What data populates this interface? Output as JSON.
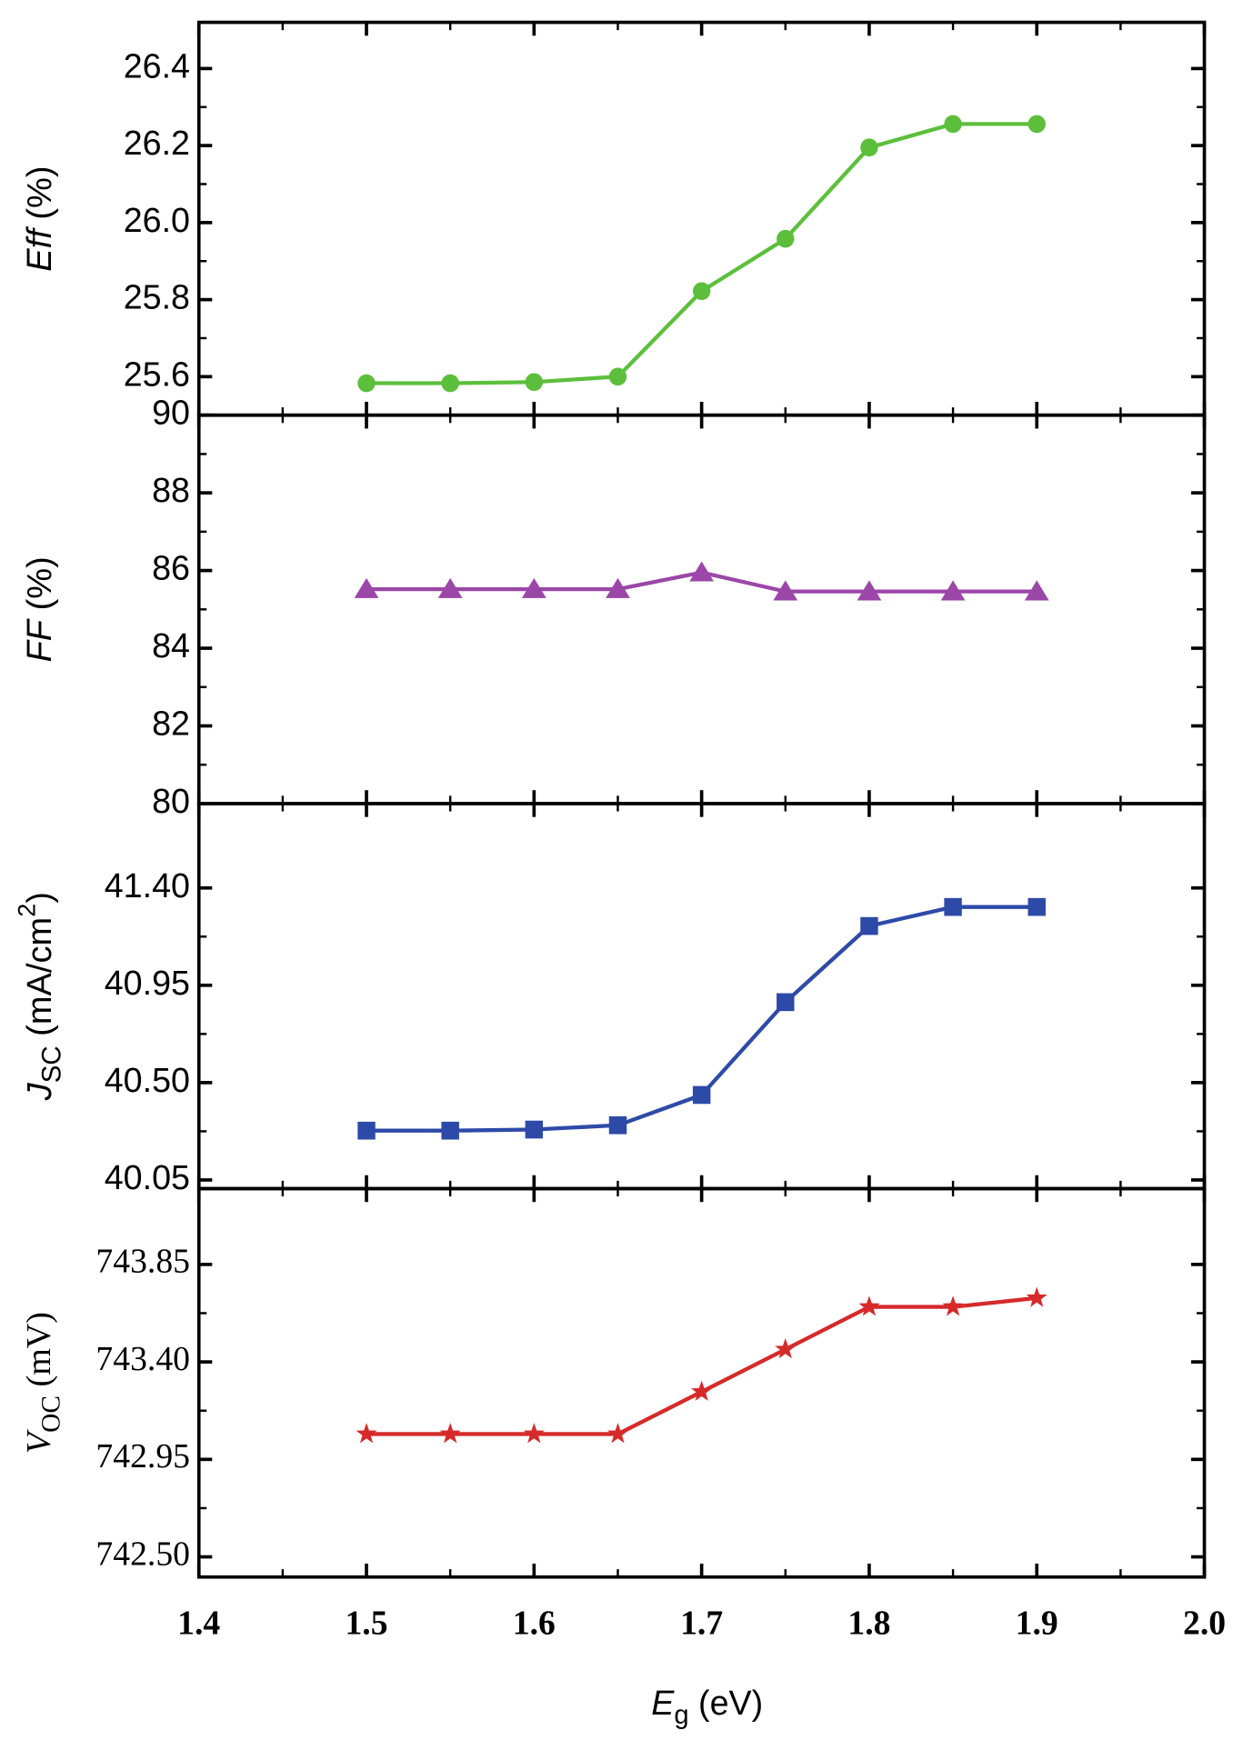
{
  "chart_data": [
    {
      "type": "line",
      "ylabel": [
        {
          "text": "Eff",
          "style": "italic"
        },
        {
          "text": " (%)",
          "style": "normal"
        }
      ],
      "x": [
        1.5,
        1.55,
        1.6,
        1.65,
        1.7,
        1.75,
        1.8,
        1.85,
        1.9
      ],
      "series": [
        {
          "color": "#5cbf3c",
          "marker": "circle",
          "values": [
            25.583,
            25.583,
            25.586,
            25.6,
            25.822,
            25.958,
            26.195,
            26.256,
            26.256
          ]
        }
      ],
      "xlim": [
        1.4,
        2.0
      ],
      "ylim": [
        25.5,
        26.52
      ],
      "yticks": [
        25.6,
        25.8,
        {
          "value": 26.0,
          "label": "26.0"
        },
        26.2,
        26.4
      ]
    },
    {
      "type": "line",
      "ylabel": [
        {
          "text": "FF",
          "style": "italic"
        },
        {
          "text": " (%)",
          "style": "normal"
        }
      ],
      "x": [
        1.5,
        1.55,
        1.6,
        1.65,
        1.7,
        1.75,
        1.8,
        1.85,
        1.9
      ],
      "series": [
        {
          "color": "#9b47a8",
          "marker": "triangle",
          "values": [
            85.52,
            85.52,
            85.52,
            85.52,
            85.95,
            85.46,
            85.46,
            85.46,
            85.46
          ]
        }
      ],
      "xlim": [
        1.4,
        2.0
      ],
      "ylim": [
        80,
        90
      ],
      "yticks": [
        80,
        82,
        84,
        86,
        88,
        90
      ]
    },
    {
      "type": "line",
      "ylabel": [
        {
          "text": "J",
          "style": "italic"
        },
        {
          "text": "SC",
          "style": "sub"
        },
        {
          "text": " (mA/cm",
          "style": "normal"
        },
        {
          "text": "2",
          "style": "sup"
        },
        {
          "text": ")",
          "style": "normal"
        }
      ],
      "x": [
        1.5,
        1.55,
        1.6,
        1.65,
        1.7,
        1.75,
        1.8,
        1.85,
        1.9
      ],
      "series": [
        {
          "color": "#2e4aa8",
          "marker": "square",
          "values": [
            40.278,
            40.278,
            40.283,
            40.303,
            40.443,
            40.872,
            41.224,
            41.312,
            41.312
          ]
        }
      ],
      "xlim": [
        1.4,
        2.0
      ],
      "ylim": [
        40.01,
        41.79
      ],
      "yticks": [
        40.05,
        {
          "value": 40.5,
          "label": "40.50"
        },
        40.95,
        {
          "value": 41.4,
          "label": "41.40"
        }
      ]
    },
    {
      "type": "line",
      "ylabel": [
        {
          "text": "V",
          "style": "italic"
        },
        {
          "text": "OC",
          "style": "sub"
        },
        {
          "text": " (mV)",
          "style": "normal"
        }
      ],
      "x": [
        1.5,
        1.55,
        1.6,
        1.65,
        1.7,
        1.75,
        1.8,
        1.85,
        1.9
      ],
      "series": [
        {
          "color": "#d62a2a",
          "marker": "star",
          "values": [
            743.067,
            743.067,
            743.067,
            743.067,
            743.262,
            743.458,
            743.654,
            743.654,
            743.695
          ]
        }
      ],
      "xlim": [
        1.4,
        2.0
      ],
      "ylim": [
        742.407,
        744.2
      ],
      "yticks": [
        {
          "value": 742.5,
          "label": "742.50"
        },
        742.95,
        {
          "value": 743.4,
          "label": "743.40"
        },
        743.85
      ],
      "xticks": [
        1.4,
        1.5,
        1.6,
        1.7,
        1.8,
        1.9,
        {
          "value": 2.0,
          "label": "2.0"
        }
      ],
      "xlabel": [
        {
          "text": "E",
          "style": "italic"
        },
        {
          "text": "g",
          "style": "sub"
        },
        {
          "text": " (eV)",
          "style": "normal"
        }
      ]
    }
  ]
}
